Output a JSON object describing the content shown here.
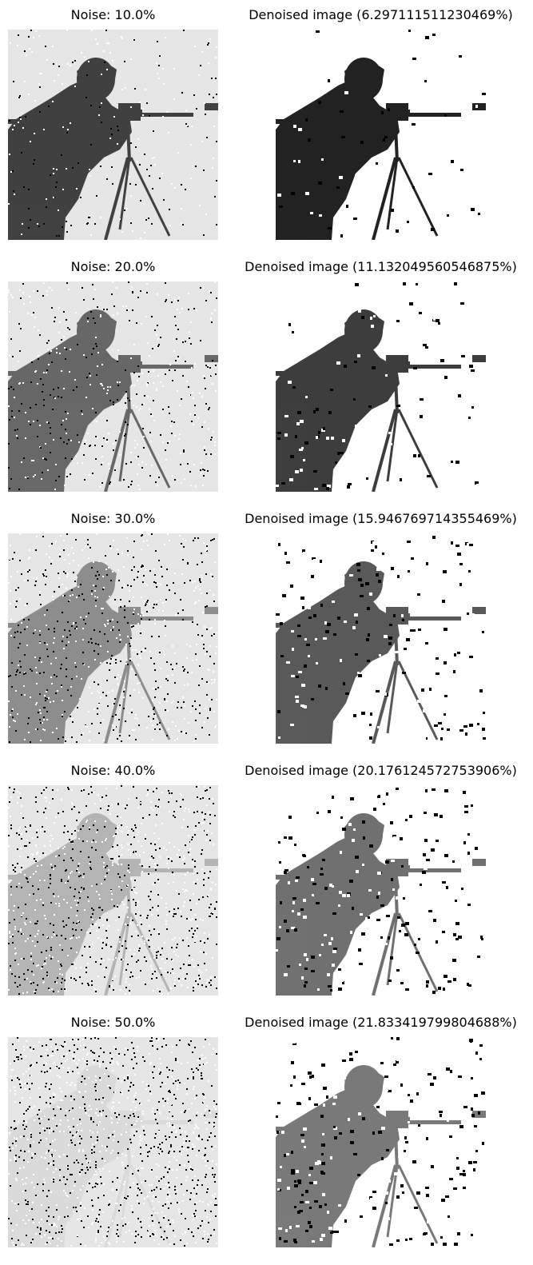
{
  "panels": [
    {
      "noise_title": "Noise: 10.0%",
      "noise_fraction": 0.1,
      "denoised_title": "Denoised image (6.297111511230469%)",
      "denoised_error_fraction": 0.06297111511230469
    },
    {
      "noise_title": "Noise: 20.0%",
      "noise_fraction": 0.2,
      "denoised_title": "Denoised image (11.132049560546875%)",
      "denoised_error_fraction": 0.11132049560546875
    },
    {
      "noise_title": "Noise: 30.0%",
      "noise_fraction": 0.3,
      "denoised_title": "Denoised image (15.946769714355469%)",
      "denoised_error_fraction": 0.1594676971435547
    },
    {
      "noise_title": "Noise: 40.0%",
      "noise_fraction": 0.4,
      "denoised_title": "Denoised image (20.176124572753906%)",
      "denoised_error_fraction": 0.20176124572753906
    },
    {
      "noise_title": "Noise: 50.0%",
      "noise_fraction": 0.5,
      "denoised_title": "Denoised image (21.833419799804688%)",
      "denoised_error_fraction": 0.21833419799804688
    }
  ],
  "colors": {
    "background": "#ffffff",
    "foreground": "#000000",
    "noisy_light": "#e6e6e6",
    "noisy_dark": "#1a1a1a"
  }
}
